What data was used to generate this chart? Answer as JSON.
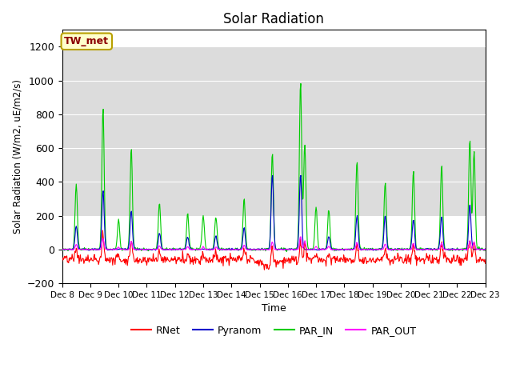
{
  "title": "Solar Radiation",
  "ylabel": "Solar Radiation (W/m2, uE/m2/s)",
  "xlabel": "Time",
  "ylim": [
    -200,
    1300
  ],
  "yticks": [
    -200,
    0,
    200,
    400,
    600,
    800,
    1000,
    1200
  ],
  "xlim_days": [
    0,
    15
  ],
  "shade_ymin": 200,
  "shade_ymax": 1200,
  "shade_color": "#dcdcdc",
  "station_label": "TW_met",
  "station_label_color": "#8b0000",
  "station_box_facecolor": "#ffffcc",
  "station_box_edgecolor": "#b8a000",
  "colors": {
    "RNet": "#ff0000",
    "Pyranom": "#0000cc",
    "PAR_IN": "#00cc00",
    "PAR_OUT": "#ff00ff"
  },
  "legend_entries": [
    "RNet",
    "Pyranom",
    "PAR_IN",
    "PAR_OUT"
  ],
  "xtick_labels": [
    "Dec 8",
    "Dec 9",
    "Dec 10",
    "Dec 11",
    "Dec 12",
    "Dec 13",
    "Dec 14",
    "Dec 15",
    "Dec 16",
    "Dec 17",
    "Dec 18",
    "Dec 19",
    "Dec 20",
    "Dec 21",
    "Dec 22",
    "Dec 23"
  ],
  "background_color": "#ffffff",
  "par_in_spikes": [
    {
      "day": 0.5,
      "peak": 390
    },
    {
      "day": 1.45,
      "peak": 840
    },
    {
      "day": 2.0,
      "peak": 170
    },
    {
      "day": 2.45,
      "peak": 600
    },
    {
      "day": 3.45,
      "peak": 280
    },
    {
      "day": 4.45,
      "peak": 210
    },
    {
      "day": 5.0,
      "peak": 200
    },
    {
      "day": 5.45,
      "peak": 195
    },
    {
      "day": 6.45,
      "peak": 300
    },
    {
      "day": 7.45,
      "peak": 580
    },
    {
      "day": 8.45,
      "peak": 1000
    },
    {
      "day": 8.6,
      "peak": 630
    },
    {
      "day": 9.0,
      "peak": 250
    },
    {
      "day": 9.45,
      "peak": 240
    },
    {
      "day": 10.45,
      "peak": 530
    },
    {
      "day": 11.45,
      "peak": 400
    },
    {
      "day": 12.45,
      "peak": 465
    },
    {
      "day": 13.45,
      "peak": 500
    },
    {
      "day": 14.45,
      "peak": 660
    },
    {
      "day": 14.6,
      "peak": 580
    }
  ],
  "pyranom_spikes": [
    {
      "day": 0.5,
      "peak": 140
    },
    {
      "day": 1.45,
      "peak": 350
    },
    {
      "day": 2.45,
      "peak": 230
    },
    {
      "day": 3.45,
      "peak": 95
    },
    {
      "day": 4.45,
      "peak": 75
    },
    {
      "day": 5.45,
      "peak": 80
    },
    {
      "day": 6.45,
      "peak": 130
    },
    {
      "day": 7.45,
      "peak": 450
    },
    {
      "day": 8.45,
      "peak": 450
    },
    {
      "day": 9.45,
      "peak": 80
    },
    {
      "day": 10.45,
      "peak": 200
    },
    {
      "day": 11.45,
      "peak": 200
    },
    {
      "day": 12.45,
      "peak": 180
    },
    {
      "day": 13.45,
      "peak": 200
    },
    {
      "day": 14.45,
      "peak": 270
    }
  ],
  "rnet_base_neg": -60,
  "rnet_night_neg": -60,
  "par_out_spike_scale": 0.08
}
